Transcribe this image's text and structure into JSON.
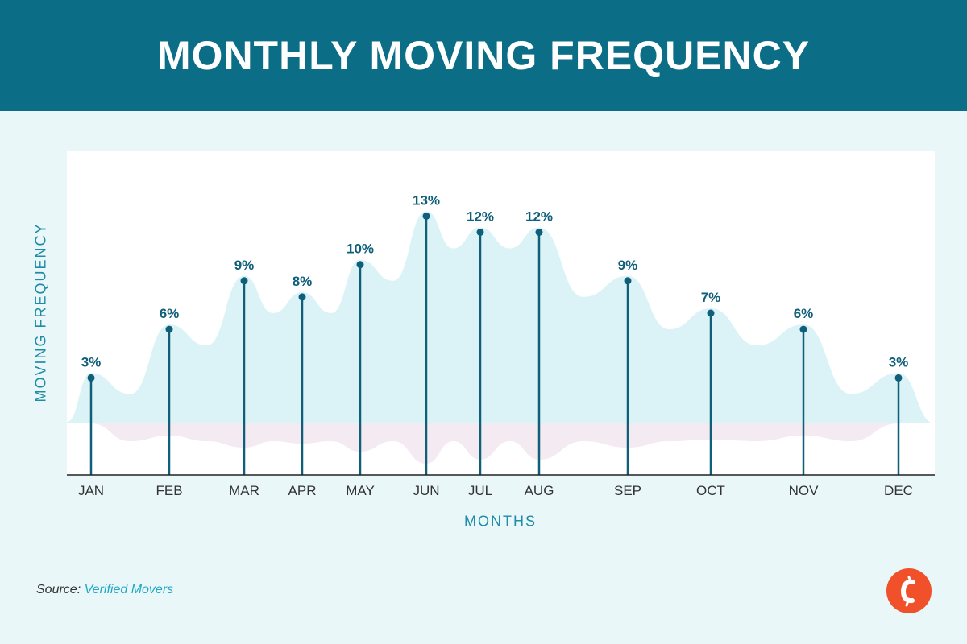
{
  "header": {
    "title": "MONTHLY MOVING FREQUENCY"
  },
  "chart_data": {
    "type": "line",
    "title": "MONTHLY MOVING FREQUENCY",
    "xlabel": "MONTHS",
    "ylabel": "MOVING FREQUENCY",
    "categories": [
      "JAN",
      "FEB",
      "MAR",
      "APR",
      "MAY",
      "JUN",
      "JUL",
      "AUG",
      "SEP",
      "OCT",
      "NOV",
      "DEC"
    ],
    "values": [
      3,
      6,
      9,
      8,
      10,
      13,
      12,
      12,
      9,
      7,
      6,
      3
    ],
    "data_labels": [
      "3%",
      "6%",
      "9%",
      "8%",
      "10%",
      "13%",
      "12%",
      "12%",
      "9%",
      "7%",
      "6%",
      "3%"
    ],
    "unit": "%",
    "ylim": [
      -3,
      17
    ],
    "grid": false,
    "colors": {
      "stem": "#0f5e7a",
      "label": "#0f5e7a",
      "axis_text": "#333333",
      "area_upper": "#dbf3f7",
      "area_lower": "#f4eaf1"
    }
  },
  "source": {
    "prefix": "Source:",
    "name": "Verified Movers"
  },
  "logo": {
    "letter": "C",
    "color": "#f0502a"
  }
}
